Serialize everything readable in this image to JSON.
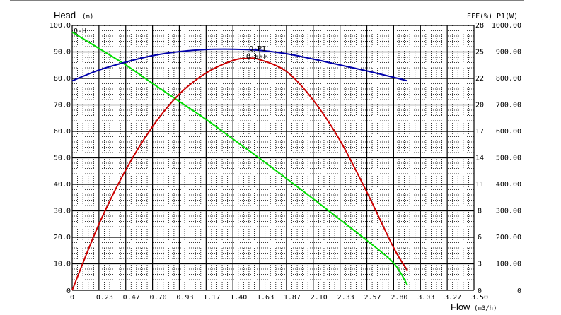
{
  "chart_data": {
    "type": "line",
    "x_axis": {
      "label": "Flow",
      "unit": "(m3/h)",
      "ticks": [
        "0",
        "0.23",
        "0.47",
        "0.70",
        "0.93",
        "1.17",
        "1.40",
        "1.63",
        "1.87",
        "2.10",
        "2.33",
        "2.57",
        "2.80",
        "3.03",
        "3.27",
        "3.50"
      ],
      "range": [
        0,
        3.5
      ]
    },
    "y_left": {
      "label": "Head",
      "unit": "(m)",
      "ticks": [
        "0",
        "10.0",
        "20.0",
        "30.0",
        "40.0",
        "50.0",
        "60.0",
        "70.0",
        "80.0",
        "90.0",
        "100.0"
      ],
      "range": [
        0,
        100
      ]
    },
    "y_right_eff": {
      "header": "EFF(%)",
      "ticks": [
        "0",
        "3",
        "6",
        "8",
        "11",
        "14",
        "17",
        "20",
        "22",
        "25",
        "28"
      ],
      "range": [
        0,
        28
      ]
    },
    "y_right_p1": {
      "header": "P1(W)",
      "ticks": [
        "0",
        "100.00",
        "200.00",
        "300.00",
        "400.00",
        "500.00",
        "600.00",
        "700.00",
        "800.00",
        "900.00",
        "1000.00"
      ],
      "range": [
        0,
        1000
      ]
    },
    "grid": true,
    "series": [
      {
        "name": "Q-H",
        "color": "#00dd00",
        "scale": "left",
        "x": [
          0,
          0.23,
          0.47,
          0.7,
          0.93,
          1.17,
          1.4,
          1.63,
          1.87,
          2.1,
          2.33,
          2.57,
          2.8,
          2.92
        ],
        "y": [
          97.5,
          91.4,
          85.0,
          78.1,
          71.4,
          64.4,
          57.1,
          49.9,
          42.1,
          34.5,
          26.8,
          18.7,
          10.3,
          2.0
        ]
      },
      {
        "name": "Q-P1",
        "color": "#0000aa",
        "scale": "p1",
        "x": [
          0,
          0.23,
          0.47,
          0.7,
          0.93,
          1.17,
          1.4,
          1.63,
          1.87,
          2.1,
          2.33,
          2.57,
          2.8,
          2.92
        ],
        "y": [
          791,
          831,
          862,
          886,
          901,
          909,
          910,
          906,
          893,
          873,
          851,
          828,
          804,
          791
        ]
      },
      {
        "name": "Q-EFF",
        "color": "#cc0000",
        "scale": "eff",
        "x": [
          0,
          0.23,
          0.47,
          0.7,
          0.93,
          1.17,
          1.4,
          1.52,
          1.63,
          1.87,
          2.1,
          2.33,
          2.57,
          2.8,
          2.92
        ],
        "y": [
          0,
          6.9,
          12.8,
          17.3,
          20.7,
          23.0,
          24.3,
          24.5,
          24.4,
          23.1,
          20.1,
          15.9,
          10.3,
          4.5,
          2.1
        ]
      }
    ],
    "curve_tags": [
      "Q-H",
      "Q-P1",
      "Q-EFF"
    ]
  }
}
